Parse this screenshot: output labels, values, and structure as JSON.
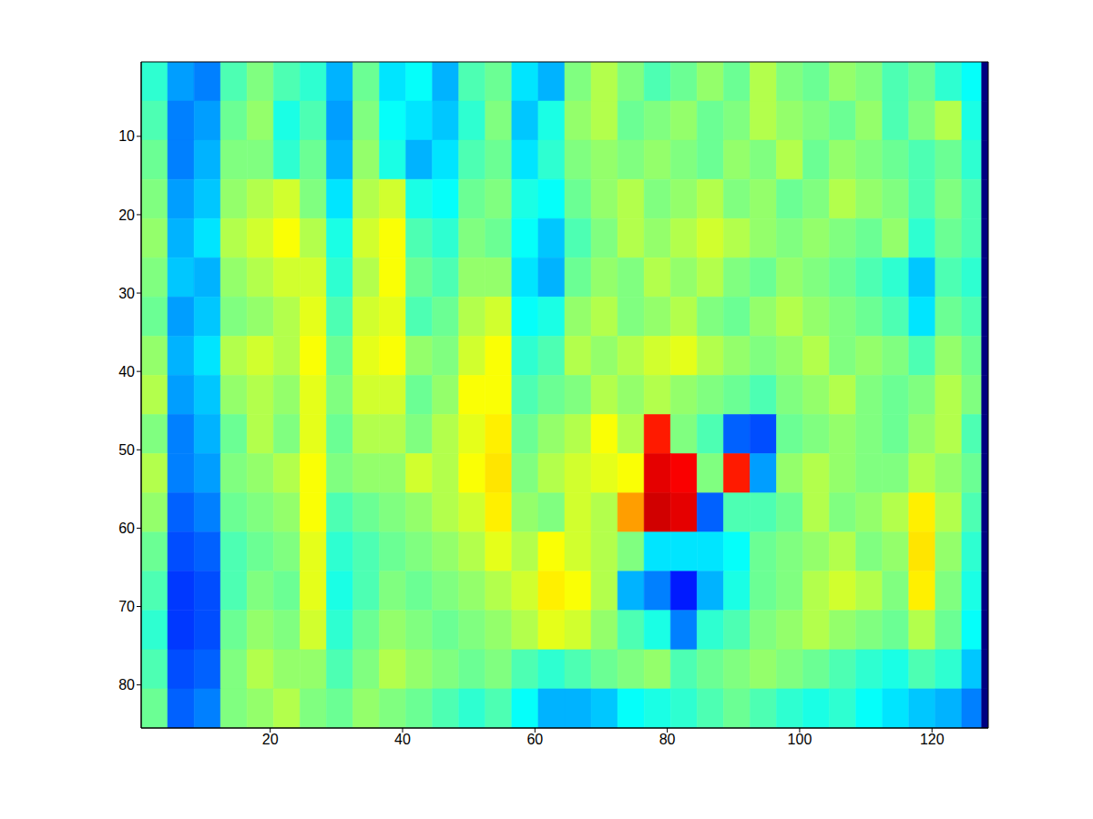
{
  "chart_data": {
    "type": "heatmap",
    "xlim": [
      0.5,
      128.5
    ],
    "xticks": [
      20,
      40,
      60,
      80,
      100,
      120
    ],
    "ylim": [
      0.5,
      85.5
    ],
    "yticks": [
      10,
      20,
      30,
      40,
      50,
      60,
      70,
      80
    ],
    "x_edges": [
      0.5,
      4.5,
      8.5,
      12.5,
      16.5,
      20.5,
      24.5,
      28.5,
      32.5,
      36.5,
      40.5,
      44.5,
      48.5,
      52.5,
      56.5,
      60.5,
      64.5,
      68.5,
      72.5,
      76.5,
      80.5,
      84.5,
      88.5,
      92.5,
      96.5,
      100.5,
      104.5,
      108.5,
      112.5,
      116.5,
      120.5,
      124.5,
      127.5,
      128.5
    ],
    "y_edges": [
      0.5,
      5.5,
      10.5,
      15.5,
      20.5,
      25.5,
      30.5,
      35.5,
      40.5,
      45.5,
      50.5,
      55.5,
      60.5,
      65.5,
      70.5,
      75.5,
      80.5,
      85.5
    ],
    "color_range": [
      0,
      100
    ],
    "cells": [
      [
        42,
        28,
        25,
        45,
        50,
        45,
        42,
        30,
        48,
        35,
        38,
        30,
        45,
        48,
        35,
        30,
        50,
        55,
        50,
        45,
        48,
        52,
        48,
        55,
        50,
        48,
        52,
        50,
        45,
        48,
        42,
        38,
        0
      ],
      [
        45,
        25,
        28,
        48,
        52,
        40,
        45,
        28,
        50,
        38,
        35,
        32,
        42,
        50,
        32,
        40,
        52,
        55,
        48,
        50,
        52,
        48,
        50,
        55,
        52,
        50,
        48,
        52,
        45,
        50,
        55,
        40,
        0
      ],
      [
        48,
        25,
        30,
        50,
        50,
        42,
        48,
        30,
        52,
        40,
        30,
        35,
        45,
        48,
        35,
        42,
        50,
        52,
        50,
        52,
        50,
        48,
        52,
        50,
        55,
        48,
        52,
        50,
        48,
        45,
        48,
        42,
        0
      ],
      [
        50,
        28,
        32,
        52,
        55,
        58,
        50,
        35,
        55,
        58,
        40,
        38,
        48,
        50,
        40,
        38,
        48,
        52,
        55,
        50,
        52,
        55,
        50,
        52,
        48,
        50,
        55,
        52,
        50,
        45,
        50,
        45,
        0
      ],
      [
        52,
        30,
        35,
        55,
        58,
        62,
        55,
        40,
        58,
        62,
        45,
        42,
        50,
        48,
        38,
        32,
        45,
        50,
        55,
        52,
        55,
        58,
        55,
        52,
        50,
        52,
        50,
        48,
        52,
        42,
        48,
        45,
        0
      ],
      [
        50,
        32,
        30,
        52,
        55,
        58,
        58,
        42,
        55,
        62,
        48,
        45,
        52,
        52,
        35,
        30,
        48,
        52,
        50,
        55,
        52,
        55,
        50,
        48,
        52,
        50,
        48,
        45,
        42,
        32,
        45,
        42,
        0
      ],
      [
        48,
        28,
        32,
        50,
        52,
        55,
        60,
        45,
        58,
        60,
        45,
        48,
        55,
        58,
        38,
        40,
        52,
        55,
        50,
        52,
        55,
        50,
        48,
        52,
        55,
        52,
        50,
        48,
        45,
        35,
        48,
        45,
        0
      ],
      [
        52,
        30,
        35,
        55,
        58,
        55,
        62,
        48,
        60,
        62,
        52,
        50,
        58,
        62,
        42,
        45,
        55,
        52,
        55,
        58,
        60,
        55,
        52,
        50,
        52,
        55,
        50,
        52,
        50,
        45,
        52,
        48,
        0
      ],
      [
        55,
        28,
        32,
        52,
        55,
        52,
        60,
        50,
        58,
        58,
        48,
        52,
        62,
        62,
        45,
        48,
        50,
        55,
        52,
        55,
        52,
        50,
        48,
        45,
        50,
        52,
        55,
        50,
        48,
        50,
        55,
        50,
        0
      ],
      [
        50,
        25,
        30,
        48,
        55,
        50,
        60,
        48,
        55,
        55,
        50,
        55,
        60,
        64,
        48,
        52,
        55,
        62,
        55,
        85,
        50,
        45,
        22,
        20,
        48,
        50,
        52,
        50,
        48,
        52,
        55,
        45,
        0
      ],
      [
        55,
        25,
        28,
        50,
        52,
        55,
        62,
        50,
        52,
        52,
        58,
        55,
        62,
        65,
        50,
        55,
        58,
        60,
        62,
        90,
        88,
        50,
        85,
        28,
        52,
        55,
        52,
        50,
        50,
        55,
        52,
        48,
        0
      ],
      [
        52,
        22,
        25,
        48,
        50,
        52,
        62,
        45,
        48,
        50,
        52,
        55,
        58,
        64,
        52,
        50,
        58,
        55,
        72,
        92,
        90,
        22,
        45,
        45,
        48,
        55,
        50,
        52,
        55,
        64,
        55,
        45,
        0
      ],
      [
        48,
        20,
        22,
        45,
        48,
        50,
        60,
        42,
        45,
        48,
        50,
        52,
        55,
        60,
        55,
        62,
        58,
        55,
        50,
        35,
        35,
        35,
        38,
        48,
        50,
        52,
        55,
        50,
        52,
        65,
        52,
        42,
        0
      ],
      [
        45,
        18,
        20,
        45,
        50,
        48,
        60,
        40,
        45,
        50,
        48,
        50,
        52,
        55,
        58,
        64,
        62,
        55,
        30,
        25,
        15,
        30,
        40,
        48,
        50,
        55,
        58,
        55,
        50,
        64,
        50,
        40,
        0
      ],
      [
        42,
        18,
        20,
        48,
        52,
        50,
        58,
        42,
        48,
        52,
        50,
        48,
        50,
        52,
        55,
        60,
        58,
        52,
        45,
        40,
        25,
        42,
        45,
        50,
        52,
        55,
        52,
        50,
        48,
        55,
        48,
        38,
        0
      ],
      [
        45,
        20,
        22,
        50,
        55,
        52,
        52,
        45,
        50,
        55,
        52,
        50,
        48,
        50,
        45,
        42,
        45,
        48,
        50,
        52,
        45,
        48,
        50,
        52,
        50,
        48,
        45,
        42,
        40,
        45,
        42,
        32,
        0
      ],
      [
        48,
        22,
        25,
        50,
        52,
        55,
        50,
        48,
        52,
        50,
        48,
        45,
        42,
        45,
        38,
        30,
        30,
        32,
        38,
        40,
        42,
        45,
        48,
        45,
        42,
        40,
        42,
        38,
        35,
        32,
        30,
        25,
        0
      ]
    ]
  }
}
